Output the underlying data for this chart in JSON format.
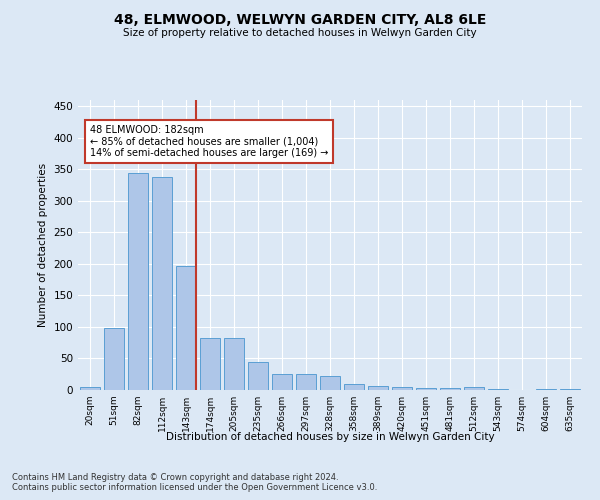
{
  "title": "48, ELMWOOD, WELWYN GARDEN CITY, AL8 6LE",
  "subtitle": "Size of property relative to detached houses in Welwyn Garden City",
  "xlabel": "Distribution of detached houses by size in Welwyn Garden City",
  "ylabel": "Number of detached properties",
  "categories": [
    "20sqm",
    "51sqm",
    "82sqm",
    "112sqm",
    "143sqm",
    "174sqm",
    "205sqm",
    "235sqm",
    "266sqm",
    "297sqm",
    "328sqm",
    "358sqm",
    "389sqm",
    "420sqm",
    "451sqm",
    "481sqm",
    "512sqm",
    "543sqm",
    "574sqm",
    "604sqm",
    "635sqm"
  ],
  "values": [
    5,
    99,
    344,
    338,
    197,
    83,
    83,
    44,
    26,
    25,
    22,
    10,
    7,
    5,
    3,
    3,
    5,
    1,
    0,
    1,
    2
  ],
  "bar_color": "#aec6e8",
  "bar_edge_color": "#5a9fd4",
  "property_line_color": "#c0392b",
  "annotation_text": "48 ELMWOOD: 182sqm\n← 85% of detached houses are smaller (1,004)\n14% of semi-detached houses are larger (169) →",
  "annotation_box_color": "#ffffff",
  "annotation_box_edge_color": "#c0392b",
  "ylim": [
    0,
    460
  ],
  "yticks": [
    0,
    50,
    100,
    150,
    200,
    250,
    300,
    350,
    400,
    450
  ],
  "footer1": "Contains HM Land Registry data © Crown copyright and database right 2024.",
  "footer2": "Contains public sector information licensed under the Open Government Licence v3.0.",
  "bg_color": "#dce8f5",
  "plot_bg_color": "#dce8f5"
}
